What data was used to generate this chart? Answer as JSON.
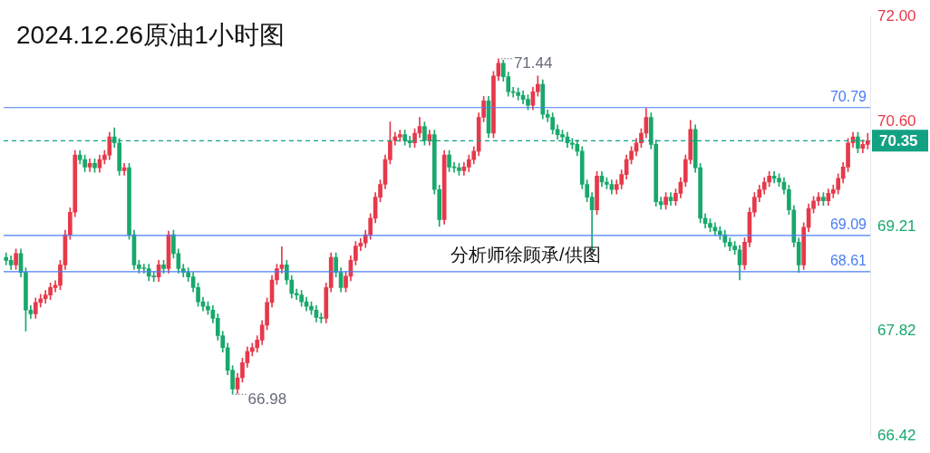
{
  "chart_data": {
    "type": "candlestick",
    "title": "2024.12.26原油1小时图",
    "annotations": [
      "71.44",
      "66.98",
      "分析师徐顾承/供图"
    ],
    "categories": [
      null,
      null,
      null,
      null,
      null,
      null,
      null,
      null,
      null,
      null,
      null,
      null,
      null,
      null,
      null,
      null,
      null,
      null,
      null,
      null,
      null,
      null,
      null,
      null,
      null,
      null,
      null,
      null,
      null,
      null,
      null,
      null,
      null,
      null,
      null,
      null,
      null,
      null,
      null,
      null,
      null,
      null,
      null,
      null,
      null,
      null,
      null,
      null,
      null,
      null,
      null,
      null,
      null,
      null,
      null,
      null,
      null,
      null,
      null,
      null,
      null,
      null,
      null,
      null,
      null,
      null,
      null,
      null,
      null,
      null,
      null,
      null,
      null,
      null,
      null,
      null,
      null,
      null,
      null,
      null,
      null,
      null,
      null,
      null,
      null,
      null,
      null,
      null,
      null,
      null,
      null,
      null,
      null,
      null,
      null,
      null,
      null,
      null,
      null,
      null,
      null,
      null,
      null,
      null,
      null,
      null,
      null,
      null,
      null,
      null,
      null,
      null,
      null,
      null,
      null,
      null,
      null,
      null,
      null,
      null,
      null,
      null,
      null,
      null,
      null,
      null,
      null,
      null,
      null,
      null,
      null,
      null,
      null,
      null,
      null,
      null,
      null,
      null,
      null,
      null,
      null,
      null,
      null,
      null,
      null,
      null,
      null,
      null,
      null,
      null,
      null,
      null,
      null,
      null,
      null,
      null,
      null,
      null,
      null,
      null,
      null,
      null,
      null,
      null,
      null,
      null,
      null,
      null,
      null,
      null,
      null,
      null,
      null,
      null,
      null,
      null
    ],
    "ohlc": [
      [
        68.8,
        68.86,
        68.7,
        68.76
      ],
      [
        68.76,
        68.82,
        68.64,
        68.7
      ],
      [
        68.7,
        68.91,
        68.64,
        68.85
      ],
      [
        68.85,
        68.91,
        68.54,
        68.6
      ],
      [
        68.6,
        68.66,
        67.82,
        68.1
      ],
      [
        68.1,
        68.16,
        67.99,
        68.05
      ],
      [
        68.05,
        68.26,
        67.99,
        68.2
      ],
      [
        68.2,
        68.31,
        68.14,
        68.25
      ],
      [
        68.25,
        68.36,
        68.19,
        68.3
      ],
      [
        68.3,
        68.46,
        68.24,
        68.4
      ],
      [
        68.4,
        68.49,
        68.34,
        68.43
      ],
      [
        68.43,
        68.76,
        68.37,
        68.7
      ],
      [
        68.7,
        69.16,
        68.64,
        69.1
      ],
      [
        69.1,
        69.46,
        69.04,
        69.4
      ],
      [
        69.4,
        70.22,
        69.34,
        70.16
      ],
      [
        70.16,
        70.22,
        70.04,
        70.1
      ],
      [
        70.1,
        70.16,
        69.94,
        70.0
      ],
      [
        70.0,
        70.11,
        69.94,
        70.05
      ],
      [
        70.05,
        70.11,
        69.93,
        69.99
      ],
      [
        69.99,
        70.16,
        69.93,
        70.1
      ],
      [
        70.1,
        70.22,
        70.04,
        70.16
      ],
      [
        70.16,
        70.46,
        70.1,
        70.4
      ],
      [
        70.4,
        70.52,
        70.26,
        70.32
      ],
      [
        70.32,
        70.38,
        69.89,
        69.95
      ],
      [
        69.95,
        70.05,
        69.89,
        69.99
      ],
      [
        69.99,
        70.05,
        69.04,
        69.1
      ],
      [
        69.1,
        69.16,
        68.64,
        68.7
      ],
      [
        68.7,
        68.76,
        68.59,
        68.65
      ],
      [
        68.65,
        68.71,
        68.59,
        68.65
      ],
      [
        68.65,
        68.71,
        68.49,
        68.55
      ],
      [
        68.55,
        68.61,
        68.48,
        68.54
      ],
      [
        68.54,
        68.76,
        68.48,
        68.7
      ],
      [
        68.7,
        68.76,
        68.59,
        68.65
      ],
      [
        68.65,
        69.15,
        68.59,
        69.1
      ],
      [
        69.1,
        69.16,
        68.79,
        68.85
      ],
      [
        68.85,
        68.91,
        68.59,
        68.65
      ],
      [
        68.65,
        68.71,
        68.54,
        68.6
      ],
      [
        68.6,
        68.66,
        68.48,
        68.54
      ],
      [
        68.54,
        68.6,
        68.34,
        68.4
      ],
      [
        68.4,
        68.46,
        68.15,
        68.21
      ],
      [
        68.21,
        68.27,
        68.09,
        68.15
      ],
      [
        68.15,
        68.21,
        68.04,
        68.1
      ],
      [
        68.1,
        68.16,
        67.93,
        67.99
      ],
      [
        67.99,
        68.05,
        67.7,
        67.76
      ],
      [
        67.76,
        67.82,
        67.54,
        67.6
      ],
      [
        67.6,
        67.66,
        67.24,
        67.3
      ],
      [
        67.3,
        67.36,
        66.98,
        67.05
      ],
      [
        67.05,
        67.26,
        66.99,
        67.2
      ],
      [
        67.2,
        67.46,
        67.14,
        67.4
      ],
      [
        67.4,
        67.61,
        67.34,
        67.55
      ],
      [
        67.55,
        67.66,
        67.49,
        67.6
      ],
      [
        67.6,
        67.76,
        67.54,
        67.7
      ],
      [
        67.7,
        67.96,
        67.64,
        67.9
      ],
      [
        67.9,
        68.26,
        67.84,
        68.2
      ],
      [
        68.2,
        68.56,
        68.14,
        68.5
      ],
      [
        68.5,
        68.71,
        68.44,
        68.65
      ],
      [
        68.65,
        68.94,
        68.59,
        68.7
      ],
      [
        68.7,
        68.76,
        68.44,
        68.5
      ],
      [
        68.5,
        68.56,
        68.26,
        68.32
      ],
      [
        68.32,
        68.38,
        68.24,
        68.3
      ],
      [
        68.3,
        68.36,
        68.15,
        68.21
      ],
      [
        68.21,
        68.27,
        68.09,
        68.15
      ],
      [
        68.15,
        68.21,
        68.04,
        68.1
      ],
      [
        68.1,
        68.16,
        67.94,
        68.0
      ],
      [
        68.0,
        68.06,
        67.93,
        67.99
      ],
      [
        67.99,
        68.46,
        67.93,
        68.4
      ],
      [
        68.4,
        68.86,
        68.34,
        68.8
      ],
      [
        68.8,
        68.86,
        68.54,
        68.6
      ],
      [
        68.6,
        68.66,
        68.34,
        68.4
      ],
      [
        68.4,
        68.61,
        68.34,
        68.55
      ],
      [
        68.55,
        68.82,
        68.49,
        68.76
      ],
      [
        68.76,
        69.01,
        68.7,
        68.95
      ],
      [
        68.95,
        69.05,
        68.89,
        68.99
      ],
      [
        68.99,
        69.16,
        68.93,
        69.1
      ],
      [
        69.1,
        69.38,
        69.04,
        69.32
      ],
      [
        69.32,
        69.66,
        69.26,
        69.6
      ],
      [
        69.6,
        69.83,
        69.54,
        69.77
      ],
      [
        69.77,
        70.16,
        69.71,
        70.1
      ],
      [
        70.1,
        70.6,
        70.04,
        70.35
      ],
      [
        70.35,
        70.46,
        70.29,
        70.4
      ],
      [
        70.4,
        70.49,
        70.34,
        70.43
      ],
      [
        70.43,
        70.49,
        70.29,
        70.35
      ],
      [
        70.35,
        70.41,
        70.26,
        70.32
      ],
      [
        70.32,
        70.51,
        70.26,
        70.45
      ],
      [
        70.45,
        70.66,
        70.39,
        70.54
      ],
      [
        70.54,
        70.6,
        70.29,
        70.35
      ],
      [
        70.35,
        70.49,
        70.29,
        70.43
      ],
      [
        70.43,
        70.49,
        69.64,
        69.7
      ],
      [
        69.7,
        69.76,
        69.21,
        69.3
      ],
      [
        69.3,
        70.22,
        69.24,
        70.16
      ],
      [
        70.16,
        70.22,
        69.94,
        70.0
      ],
      [
        70.0,
        70.06,
        69.93,
        69.99
      ],
      [
        69.99,
        70.05,
        69.89,
        69.95
      ],
      [
        69.95,
        70.06,
        69.89,
        70.0
      ],
      [
        70.0,
        70.16,
        69.94,
        70.1
      ],
      [
        70.1,
        70.27,
        70.04,
        70.21
      ],
      [
        70.21,
        70.72,
        70.15,
        70.66
      ],
      [
        70.66,
        70.94,
        70.6,
        70.88
      ],
      [
        70.88,
        70.94,
        70.39,
        70.45
      ],
      [
        70.45,
        71.27,
        70.39,
        71.21
      ],
      [
        71.21,
        71.44,
        71.15,
        71.38
      ],
      [
        71.38,
        71.42,
        71.14,
        71.2
      ],
      [
        71.2,
        71.26,
        70.94,
        71.0
      ],
      [
        71.0,
        71.06,
        70.93,
        70.99
      ],
      [
        70.99,
        71.05,
        70.89,
        70.95
      ],
      [
        70.95,
        71.01,
        70.84,
        70.9
      ],
      [
        70.9,
        70.96,
        70.76,
        70.82
      ],
      [
        70.82,
        71.06,
        70.76,
        71.0
      ],
      [
        71.0,
        71.21,
        70.94,
        71.1
      ],
      [
        71.1,
        71.16,
        70.64,
        70.7
      ],
      [
        70.7,
        70.76,
        70.6,
        70.66
      ],
      [
        70.66,
        70.72,
        70.44,
        70.5
      ],
      [
        70.5,
        70.56,
        70.37,
        70.43
      ],
      [
        70.43,
        70.49,
        70.34,
        70.4
      ],
      [
        70.4,
        70.46,
        70.26,
        70.32
      ],
      [
        70.32,
        70.38,
        70.24,
        70.3
      ],
      [
        70.3,
        70.36,
        70.15,
        70.21
      ],
      [
        70.21,
        70.27,
        69.71,
        69.77
      ],
      [
        69.77,
        69.83,
        69.54,
        69.6
      ],
      [
        69.6,
        69.66,
        68.9,
        69.43
      ],
      [
        69.43,
        69.94,
        69.37,
        69.88
      ],
      [
        69.88,
        69.94,
        69.74,
        69.8
      ],
      [
        69.8,
        69.86,
        69.71,
        69.77
      ],
      [
        69.77,
        69.83,
        69.64,
        69.7
      ],
      [
        69.7,
        69.83,
        69.64,
        69.77
      ],
      [
        69.77,
        69.96,
        69.71,
        69.9
      ],
      [
        69.9,
        70.16,
        69.84,
        70.1
      ],
      [
        70.1,
        70.27,
        70.04,
        70.21
      ],
      [
        70.21,
        70.38,
        70.15,
        70.32
      ],
      [
        70.32,
        70.51,
        70.26,
        70.45
      ],
      [
        70.45,
        70.78,
        70.39,
        70.66
      ],
      [
        70.66,
        70.72,
        70.24,
        70.3
      ],
      [
        70.3,
        70.36,
        69.48,
        69.54
      ],
      [
        69.54,
        69.6,
        69.44,
        69.5
      ],
      [
        69.5,
        69.66,
        69.44,
        69.6
      ],
      [
        69.6,
        69.66,
        69.49,
        69.55
      ],
      [
        69.55,
        69.71,
        69.49,
        69.65
      ],
      [
        69.65,
        69.86,
        69.59,
        69.8
      ],
      [
        69.8,
        70.16,
        69.74,
        70.1
      ],
      [
        70.1,
        70.62,
        70.04,
        70.5
      ],
      [
        70.5,
        70.56,
        69.93,
        69.99
      ],
      [
        69.99,
        70.05,
        69.26,
        69.32
      ],
      [
        69.32,
        69.38,
        69.19,
        69.25
      ],
      [
        69.25,
        69.31,
        69.14,
        69.2
      ],
      [
        69.2,
        69.26,
        69.09,
        69.15
      ],
      [
        69.15,
        69.21,
        69.04,
        69.1
      ],
      [
        69.1,
        69.16,
        68.94,
        69.0
      ],
      [
        69.0,
        69.06,
        68.89,
        68.95
      ],
      [
        68.95,
        69.01,
        68.84,
        68.9
      ],
      [
        68.9,
        68.96,
        68.5,
        68.7
      ],
      [
        68.7,
        69.06,
        68.64,
        69.0
      ],
      [
        69.0,
        69.46,
        68.94,
        69.4
      ],
      [
        69.4,
        69.66,
        69.34,
        69.6
      ],
      [
        69.6,
        69.76,
        69.54,
        69.7
      ],
      [
        69.7,
        69.86,
        69.64,
        69.8
      ],
      [
        69.8,
        69.94,
        69.74,
        69.88
      ],
      [
        69.88,
        69.94,
        69.79,
        69.85
      ],
      [
        69.85,
        69.91,
        69.74,
        69.8
      ],
      [
        69.8,
        69.86,
        69.64,
        69.7
      ],
      [
        69.7,
        69.76,
        69.37,
        69.43
      ],
      [
        69.43,
        69.49,
        68.94,
        69.0
      ],
      [
        69.0,
        69.06,
        68.6,
        68.7
      ],
      [
        68.7,
        69.26,
        68.64,
        69.2
      ],
      [
        69.2,
        69.51,
        69.14,
        69.45
      ],
      [
        69.45,
        69.61,
        69.39,
        69.55
      ],
      [
        69.55,
        69.66,
        69.49,
        69.6
      ],
      [
        69.6,
        69.66,
        69.49,
        69.55
      ],
      [
        69.55,
        69.71,
        69.49,
        69.65
      ],
      [
        69.65,
        69.76,
        69.59,
        69.7
      ],
      [
        69.7,
        69.91,
        69.64,
        69.85
      ],
      [
        69.85,
        70.06,
        69.79,
        70.0
      ],
      [
        70.0,
        70.38,
        69.94,
        70.32
      ],
      [
        70.32,
        70.46,
        70.26,
        70.4
      ],
      [
        70.4,
        70.46,
        70.19,
        70.25
      ],
      [
        70.25,
        70.36,
        70.19,
        70.3
      ],
      [
        70.3,
        70.45,
        70.24,
        70.35
      ]
    ],
    "colors": [
      "#18a86b",
      "#18a86b",
      "#e6394a",
      "#18a86b",
      "#18a86b",
      "#18a86b",
      "#e6394a",
      "#e6394a",
      "#e6394a",
      "#e6394a",
      "#e6394a",
      "#e6394a",
      "#e6394a",
      "#e6394a",
      "#e6394a",
      "#18a86b",
      "#18a86b",
      "#e6394a",
      "#18a86b",
      "#e6394a",
      "#e6394a",
      "#e6394a",
      "#18a86b",
      "#18a86b",
      "#e6394a",
      "#18a86b",
      "#18a86b",
      "#18a86b",
      "#18a86b",
      "#18a86b",
      "#18a86b",
      "#e6394a",
      "#18a86b",
      "#e6394a",
      "#18a86b",
      "#18a86b",
      "#18a86b",
      "#18a86b",
      "#18a86b",
      "#18a86b",
      "#18a86b",
      "#18a86b",
      "#18a86b",
      "#18a86b",
      "#18a86b",
      "#18a86b",
      "#18a86b",
      "#e6394a",
      "#e6394a",
      "#e6394a",
      "#e6394a",
      "#e6394a",
      "#e6394a",
      "#e6394a",
      "#e6394a",
      "#e6394a",
      "#e6394a",
      "#18a86b",
      "#18a86b",
      "#18a86b",
      "#18a86b",
      "#18a86b",
      "#18a86b",
      "#18a86b",
      "#18a86b",
      "#e6394a",
      "#e6394a",
      "#18a86b",
      "#18a86b",
      "#e6394a",
      "#e6394a",
      "#e6394a",
      "#e6394a",
      "#e6394a",
      "#e6394a",
      "#e6394a",
      "#e6394a",
      "#e6394a",
      "#e6394a",
      "#e6394a",
      "#e6394a",
      "#18a86b",
      "#18a86b",
      "#e6394a",
      "#e6394a",
      "#18a86b",
      "#e6394a",
      "#18a86b",
      "#18a86b",
      "#e6394a",
      "#18a86b",
      "#18a86b",
      "#18a86b",
      "#e6394a",
      "#e6394a",
      "#e6394a",
      "#e6394a",
      "#e6394a",
      "#18a86b",
      "#e6394a",
      "#e6394a",
      "#18a86b",
      "#18a86b",
      "#18a86b",
      "#18a86b",
      "#18a86b",
      "#18a86b",
      "#e6394a",
      "#e6394a",
      "#18a86b",
      "#18a86b",
      "#18a86b",
      "#18a86b",
      "#18a86b",
      "#18a86b",
      "#18a86b",
      "#18a86b",
      "#18a86b",
      "#18a86b",
      "#18a86b",
      "#e6394a",
      "#18a86b",
      "#18a86b",
      "#18a86b",
      "#e6394a",
      "#e6394a",
      "#e6394a",
      "#e6394a",
      "#e6394a",
      "#e6394a",
      "#e6394a",
      "#18a86b",
      "#18a86b",
      "#18a86b",
      "#e6394a",
      "#18a86b",
      "#e6394a",
      "#e6394a",
      "#e6394a",
      "#e6394a",
      "#18a86b",
      "#18a86b",
      "#18a86b",
      "#18a86b",
      "#18a86b",
      "#18a86b",
      "#18a86b",
      "#18a86b",
      "#18a86b",
      "#18a86b",
      "#e6394a",
      "#e6394a",
      "#e6394a",
      "#e6394a",
      "#e6394a",
      "#e6394a",
      "#18a86b",
      "#18a86b",
      "#18a86b",
      "#18a86b",
      "#18a86b",
      "#18a86b",
      "#e6394a",
      "#e6394a",
      "#e6394a",
      "#e6394a",
      "#18a86b",
      "#e6394a",
      "#e6394a",
      "#e6394a",
      "#e6394a",
      "#e6394a",
      "#e6394a",
      "#18a86b",
      "#e6394a",
      "#e6394a"
    ],
    "ylim": [
      66.42,
      72.0
    ],
    "yticks": [
      {
        "value": 66.42,
        "label": "66.42"
      },
      {
        "value": 67.82,
        "label": "67.82"
      },
      {
        "value": 69.21,
        "label": "69.21"
      },
      {
        "value": 70.6,
        "label": "70.60"
      },
      {
        "value": 72.0,
        "label": "72.00"
      }
    ],
    "ref_lines": [
      {
        "axis": "y",
        "value": 70.79,
        "label": "70.79",
        "color": "#4a7cf5"
      },
      {
        "axis": "y",
        "value": 69.09,
        "label": "69.09",
        "color": "#4a7cf5"
      },
      {
        "axis": "y",
        "value": 68.61,
        "label": "68.61",
        "color": "#4a7cf5"
      },
      {
        "axis": "y",
        "value": 70.35,
        "label": "70.35",
        "color": "#12a183",
        "line_style": "dashed"
      }
    ],
    "legend": false,
    "tick_labels": "y"
  }
}
